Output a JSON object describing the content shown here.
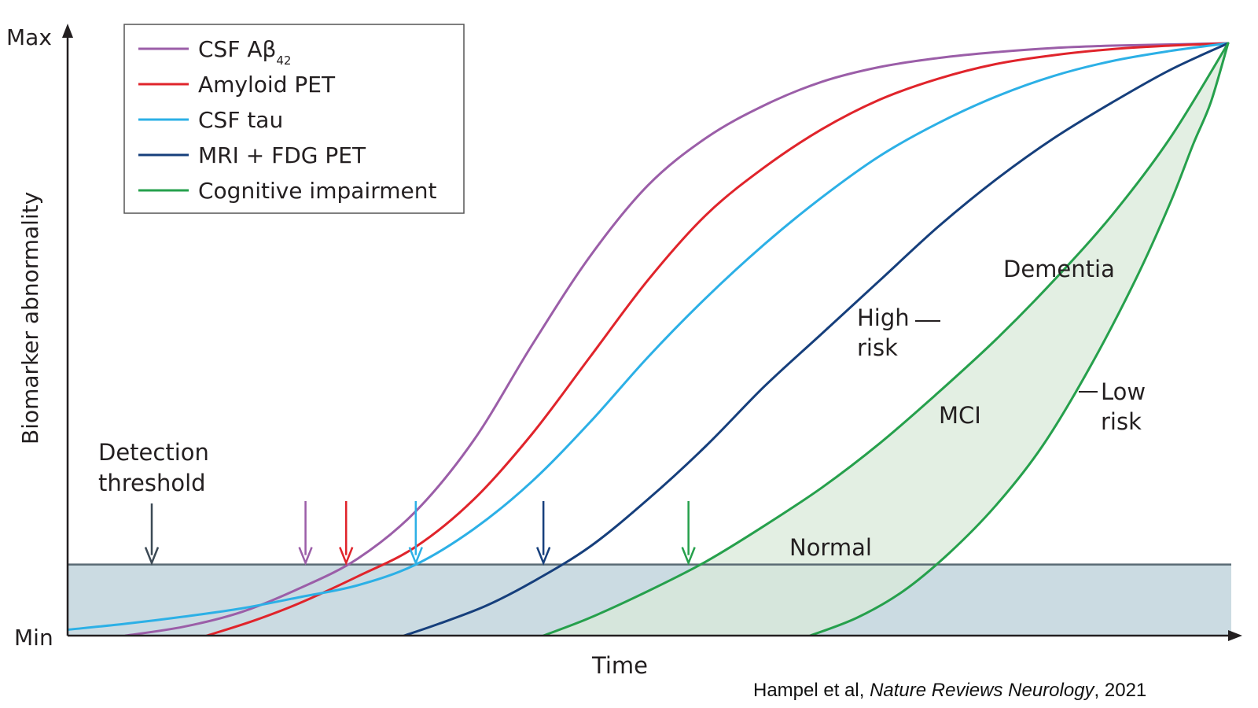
{
  "chart_data": {
    "type": "line",
    "xlabel": "Time",
    "ylabel": "Biomarker abnormality",
    "ytick_labels": [
      "Min",
      "Max"
    ],
    "x_range": [
      0,
      100
    ],
    "y_range": [
      0,
      100
    ],
    "detection_threshold": {
      "label_line1": "Detection",
      "label_line2": "threshold",
      "level": 12
    },
    "legend": {
      "placement": "top-left",
      "entries": [
        {
          "key": "csf_ab42",
          "name_main": "CSF Aβ",
          "name_sub": "42",
          "color": "#9b5ea8"
        },
        {
          "key": "amyloid_pet",
          "name_main": "Amyloid PET",
          "name_sub": "",
          "color": "#e0242b"
        },
        {
          "key": "csf_tau",
          "name_main": "CSF tau",
          "name_sub": "",
          "color": "#2cb0e6"
        },
        {
          "key": "mri_fdg_pet",
          "name_main": "MRI + FDG PET",
          "name_sub": "",
          "color": "#163f7c"
        },
        {
          "key": "cognitive",
          "name_main": "Cognitive impairment",
          "name_sub": "",
          "color": "#26a04c"
        }
      ]
    },
    "series": [
      {
        "key": "csf_ab42",
        "color": "#9b5ea8",
        "x": [
          5,
          10,
          15,
          20,
          25,
          30,
          35,
          40,
          45,
          50,
          55,
          60,
          65,
          70,
          75,
          80,
          85,
          90,
          95,
          100
        ],
        "y": [
          0,
          1.5,
          4,
          8,
          13,
          21,
          33,
          49,
          64,
          76,
          84,
          89.5,
          93.5,
          96,
          97.5,
          98.5,
          99.2,
          99.6,
          99.8,
          100
        ]
      },
      {
        "key": "amyloid_pet",
        "color": "#e0242b",
        "x": [
          12,
          16,
          20,
          25,
          30,
          35,
          40,
          45,
          50,
          55,
          60,
          65,
          70,
          75,
          80,
          85,
          90,
          95,
          100
        ],
        "y": [
          0,
          2.5,
          5.5,
          10,
          15,
          23,
          34,
          47,
          60,
          71,
          79,
          85.5,
          90.5,
          94,
          96.5,
          98,
          99,
          99.6,
          100
        ]
      },
      {
        "key": "csf_tau",
        "color": "#2cb0e6",
        "x": [
          0,
          5,
          10,
          15,
          20,
          25,
          30,
          35,
          40,
          45,
          50,
          55,
          60,
          65,
          70,
          75,
          80,
          85,
          90,
          95,
          100
        ],
        "y": [
          1,
          2,
          3.2,
          4.6,
          6.5,
          8.5,
          12,
          18,
          26,
          36,
          47,
          57,
          66,
          74,
          81,
          86.5,
          91,
          94.5,
          97,
          98.7,
          100
        ]
      },
      {
        "key": "mri_fdg_pet",
        "color": "#163f7c",
        "x": [
          29,
          32,
          36,
          40,
          45,
          50,
          55,
          60,
          65,
          70,
          75,
          80,
          85,
          90,
          95,
          100
        ],
        "y": [
          0,
          2,
          5,
          9,
          15,
          23,
          32,
          42,
          51,
          60,
          69,
          77,
          84,
          90,
          95.5,
          100
        ]
      },
      {
        "key": "cognitive_high_risk",
        "name": "High risk",
        "color": "#26a04c",
        "x": [
          41,
          45,
          50,
          55,
          60,
          65,
          70,
          75,
          80,
          85,
          90,
          95,
          100
        ],
        "y": [
          0,
          3,
          7.5,
          12.5,
          18.5,
          25,
          32.5,
          41,
          50,
          60,
          71,
          84,
          100
        ]
      },
      {
        "key": "cognitive_low_risk",
        "name": "Low risk",
        "color": "#26a04c",
        "x": [
          64,
          68,
          72,
          76,
          80,
          84,
          88,
          92,
          95,
          97,
          98.5,
          100
        ],
        "y": [
          0,
          3,
          7.5,
          14,
          22,
          32,
          45,
          60,
          73,
          83,
          90,
          100
        ]
      }
    ],
    "threshold_arrows": [
      {
        "x": 20.5,
        "color": "#9b5ea8"
      },
      {
        "x": 24,
        "color": "#e0242b"
      },
      {
        "x": 30,
        "color": "#2cb0e6"
      },
      {
        "x": 41,
        "color": "#163f7c"
      },
      {
        "x": 53.5,
        "color": "#26a04c"
      }
    ],
    "annotations": {
      "dementia": "Dementia",
      "mci": "MCI",
      "normal": "Normal",
      "high_risk_line1": "High",
      "high_risk_line2": "risk",
      "low_risk_line1": "Low",
      "low_risk_line2": "risk"
    },
    "colors": {
      "threshold_band": "#cbdbe2",
      "threshold_line": "#5a6b74",
      "region_fill": "#d9ead9",
      "axis": "#231f20",
      "detection_arrow": "#3c4a55"
    }
  },
  "citation": {
    "authors": "Hampel et al, ",
    "journal": "Nature Reviews Neurology",
    "year": ", 2021"
  }
}
